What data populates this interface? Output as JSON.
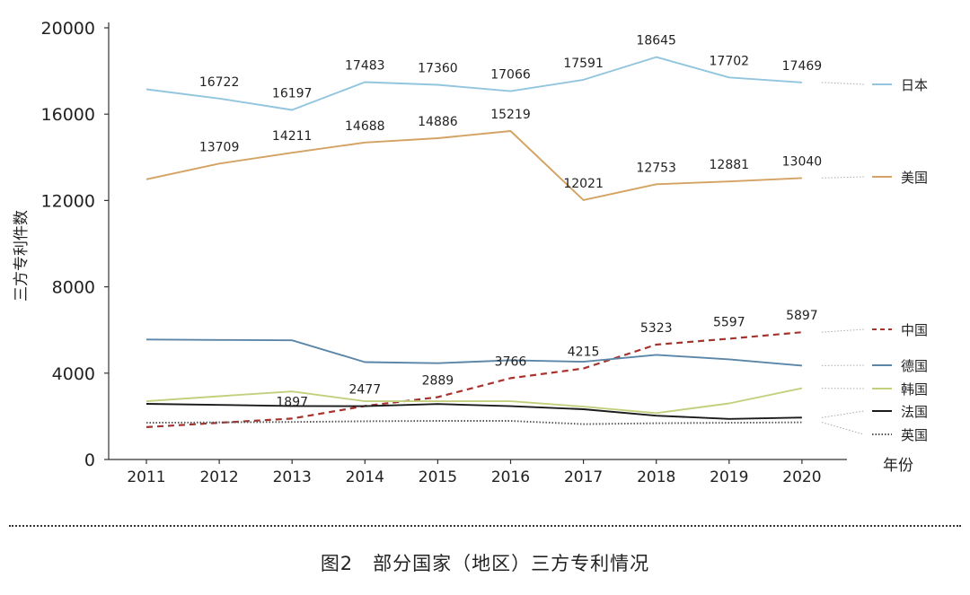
{
  "chart_data": {
    "type": "line",
    "ylabel": "三方专利件数",
    "xlabel": "年份",
    "ylim": [
      0,
      20000
    ],
    "yticks": [
      0,
      4000,
      8000,
      12000,
      16000,
      20000
    ],
    "x": [
      "2011",
      "2012",
      "2013",
      "2014",
      "2015",
      "2016",
      "2017",
      "2018",
      "2019",
      "2020"
    ],
    "legend_position": "right",
    "grid": false,
    "series": [
      {
        "name": "日本",
        "color": "#92c5de",
        "dash": "solid",
        "values": [
          17150,
          16722,
          16197,
          17483,
          17360,
          17066,
          17591,
          18645,
          17702,
          17469
        ],
        "labels": [
          "",
          "16722",
          "16197",
          "17483",
          "17360",
          "17066",
          "17591",
          "18645",
          "17702",
          "17469"
        ]
      },
      {
        "name": "美国",
        "color": "#d4a262",
        "dash": "solid",
        "values": [
          12980,
          13709,
          14211,
          14688,
          14886,
          15219,
          12021,
          12753,
          12881,
          13040
        ],
        "labels": [
          "",
          "13709",
          "14211",
          "14688",
          "14886",
          "15219",
          "12021",
          "12753",
          "12881",
          "13040"
        ]
      },
      {
        "name": "中国",
        "color": "#a8322e",
        "dash": "dashed",
        "values": [
          1500,
          1700,
          1897,
          2477,
          2889,
          3766,
          4215,
          5323,
          5597,
          5897
        ],
        "labels": [
          "",
          "",
          "1897",
          "2477",
          "2889",
          "3766",
          "4215",
          "5323",
          "5597",
          "5897"
        ]
      },
      {
        "name": "德国",
        "color": "#5b86a8",
        "dash": "solid",
        "values": [
          5560,
          5540,
          5520,
          4510,
          4460,
          4600,
          4530,
          4850,
          4640,
          4350
        ],
        "labels": [
          "",
          "",
          "",
          "",
          "",
          "",
          "",
          "",
          "",
          ""
        ]
      },
      {
        "name": "韩国",
        "color": "#c4cf7e",
        "dash": "solid",
        "values": [
          2700,
          2930,
          3150,
          2700,
          2700,
          2700,
          2450,
          2150,
          2600,
          3300
        ],
        "labels": [
          "",
          "",
          "",
          "",
          "",
          "",
          "",
          "",
          "",
          ""
        ]
      },
      {
        "name": "法国",
        "color": "#1a1a1a",
        "dash": "solid",
        "values": [
          2580,
          2530,
          2480,
          2470,
          2570,
          2470,
          2330,
          2030,
          1880,
          1940
        ],
        "labels": [
          "",
          "",
          "",
          "",
          "",
          "",
          "",
          "",
          "",
          ""
        ]
      },
      {
        "name": "英国",
        "color": "#555555",
        "dash": "dotted",
        "values": [
          1700,
          1720,
          1740,
          1770,
          1790,
          1790,
          1640,
          1680,
          1700,
          1720
        ],
        "labels": [
          "",
          "",
          "",
          "",
          "",
          "",
          "",
          "",
          "",
          ""
        ]
      }
    ]
  },
  "caption": "图2　部分国家（地区）三方专利情况"
}
